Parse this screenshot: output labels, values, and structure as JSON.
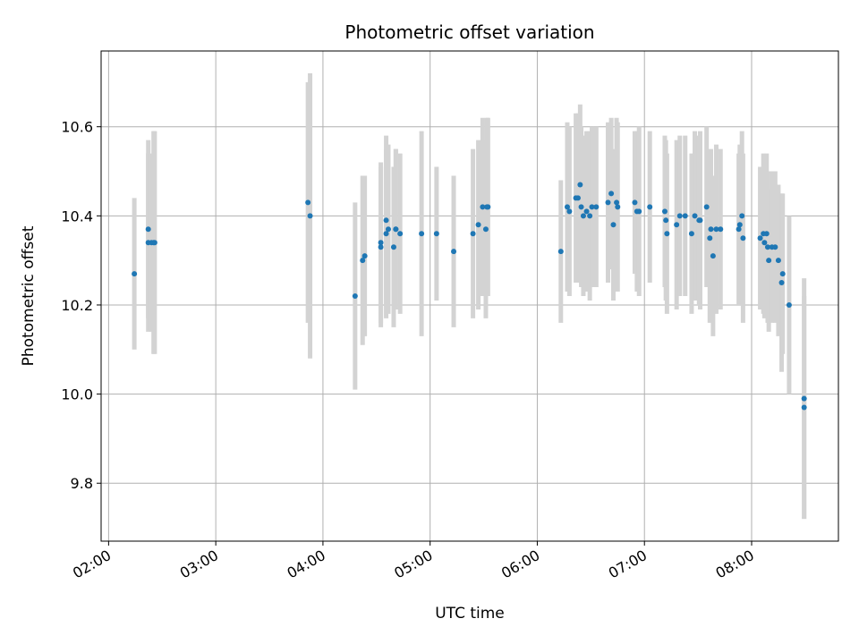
{
  "chart_data": {
    "type": "scatter",
    "title": "Photometric offset variation",
    "xlabel": "UTC time",
    "ylabel": "Photometric offset",
    "x_axis": {
      "ticks": [
        2.0,
        3.0,
        4.0,
        5.0,
        6.0,
        7.0,
        8.0
      ],
      "tick_labels": [
        "02:00",
        "03:00",
        "04:00",
        "05:00",
        "06:00",
        "07:00",
        "08:00"
      ],
      "range": [
        1.93,
        8.81
      ],
      "units": "hours UTC"
    },
    "y_axis": {
      "ticks": [
        9.8,
        10.0,
        10.2,
        10.4,
        10.6
      ],
      "tick_labels": [
        "9.8",
        "10.0",
        "10.2",
        "10.4",
        "10.6"
      ],
      "range": [
        9.67,
        10.77
      ]
    },
    "grid": true,
    "colors": {
      "point": "#1f77b4",
      "error_bar": "#d3d3d3",
      "grid": "#b0b0b0"
    },
    "series": [
      {
        "x": [
          2.24,
          2.37,
          2.37,
          2.4,
          2.42,
          2.43,
          3.86,
          3.88,
          4.3,
          4.37,
          4.39,
          4.54,
          4.54,
          4.59,
          4.59,
          4.61,
          4.66,
          4.68,
          4.68,
          4.72,
          4.92,
          5.06,
          5.22,
          5.4,
          5.45,
          5.49,
          5.52,
          5.53,
          5.54,
          6.22,
          6.28,
          6.3,
          6.36,
          6.38,
          6.4,
          6.41,
          6.43,
          6.46,
          6.49,
          6.51,
          6.55,
          6.66,
          6.69,
          6.71,
          6.74,
          6.75,
          6.91,
          6.93,
          6.95,
          7.05,
          7.19,
          7.2,
          7.21,
          7.3,
          7.33,
          7.38,
          7.44,
          7.47,
          7.51,
          7.52,
          7.58,
          7.61,
          7.62,
          7.64,
          7.67,
          7.71,
          7.88,
          7.89,
          7.91,
          7.92,
          8.08,
          8.11,
          8.12,
          8.14,
          8.15,
          8.16,
          8.19,
          8.22,
          8.25,
          8.28,
          8.29,
          8.35,
          8.49,
          8.49
        ],
        "y": [
          10.27,
          10.37,
          10.34,
          10.34,
          10.34,
          10.34,
          10.43,
          10.4,
          10.22,
          10.3,
          10.31,
          10.33,
          10.34,
          10.36,
          10.39,
          10.37,
          10.33,
          10.37,
          10.37,
          10.36,
          10.36,
          10.36,
          10.32,
          10.36,
          10.38,
          10.42,
          10.37,
          10.42,
          10.42,
          10.32,
          10.42,
          10.41,
          10.44,
          10.44,
          10.47,
          10.42,
          10.4,
          10.41,
          10.4,
          10.42,
          10.42,
          10.43,
          10.45,
          10.38,
          10.43,
          10.42,
          10.43,
          10.41,
          10.41,
          10.42,
          10.41,
          10.39,
          10.36,
          10.38,
          10.4,
          10.4,
          10.36,
          10.4,
          10.39,
          10.39,
          10.42,
          10.35,
          10.37,
          10.31,
          10.37,
          10.37,
          10.37,
          10.38,
          10.4,
          10.35,
          10.35,
          10.36,
          10.34,
          10.36,
          10.33,
          10.3,
          10.33,
          10.33,
          10.3,
          10.25,
          10.27,
          10.2,
          9.99,
          9.97
        ],
        "err": [
          0.17,
          0.2,
          0.2,
          0.2,
          0.25,
          0.25,
          0.27,
          0.32,
          0.21,
          0.19,
          0.18,
          0.18,
          0.18,
          0.19,
          0.19,
          0.19,
          0.18,
          0.18,
          0.18,
          0.18,
          0.23,
          0.15,
          0.17,
          0.19,
          0.19,
          0.2,
          0.2,
          0.2,
          0.2,
          0.16,
          0.19,
          0.19,
          0.19,
          0.19,
          0.18,
          0.18,
          0.18,
          0.18,
          0.19,
          0.18,
          0.18,
          0.18,
          0.17,
          0.17,
          0.19,
          0.19,
          0.16,
          0.18,
          0.19,
          0.17,
          0.17,
          0.18,
          0.18,
          0.19,
          0.18,
          0.18,
          0.18,
          0.19,
          0.19,
          0.2,
          0.18,
          0.19,
          0.18,
          0.18,
          0.19,
          0.18,
          0.17,
          0.18,
          0.19,
          0.19,
          0.16,
          0.18,
          0.17,
          0.18,
          0.17,
          0.16,
          0.17,
          0.17,
          0.17,
          0.2,
          0.18,
          0.2,
          0.27,
          0.25
        ]
      }
    ]
  }
}
